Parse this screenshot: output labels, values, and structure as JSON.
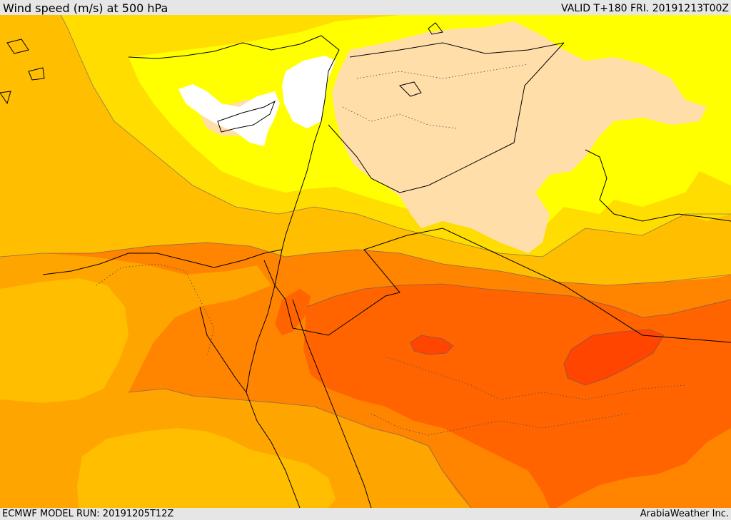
{
  "header": {
    "title": "Wind speed (m/s) at 500 hPa",
    "valid_time": "VALID T+180 FRI. 20191213T00Z"
  },
  "footer": {
    "model_run": "ECMWF MODEL RUN: 20191205T12Z",
    "credit": "ArabiaWeather Inc."
  },
  "map": {
    "variable": "wind speed",
    "units": "m/s",
    "pressure_level": "500 hPa",
    "colors": {
      "calm": "#ffffff",
      "very_light": "#ffdeaa",
      "light": "#ffff00",
      "light_moderate": "#ffdd00",
      "moderate": "#ffbe00",
      "moderate_strong": "#ffa500",
      "strong": "#ff8400",
      "very_strong": "#ff6400",
      "jet_core": "#ff4500"
    }
  }
}
